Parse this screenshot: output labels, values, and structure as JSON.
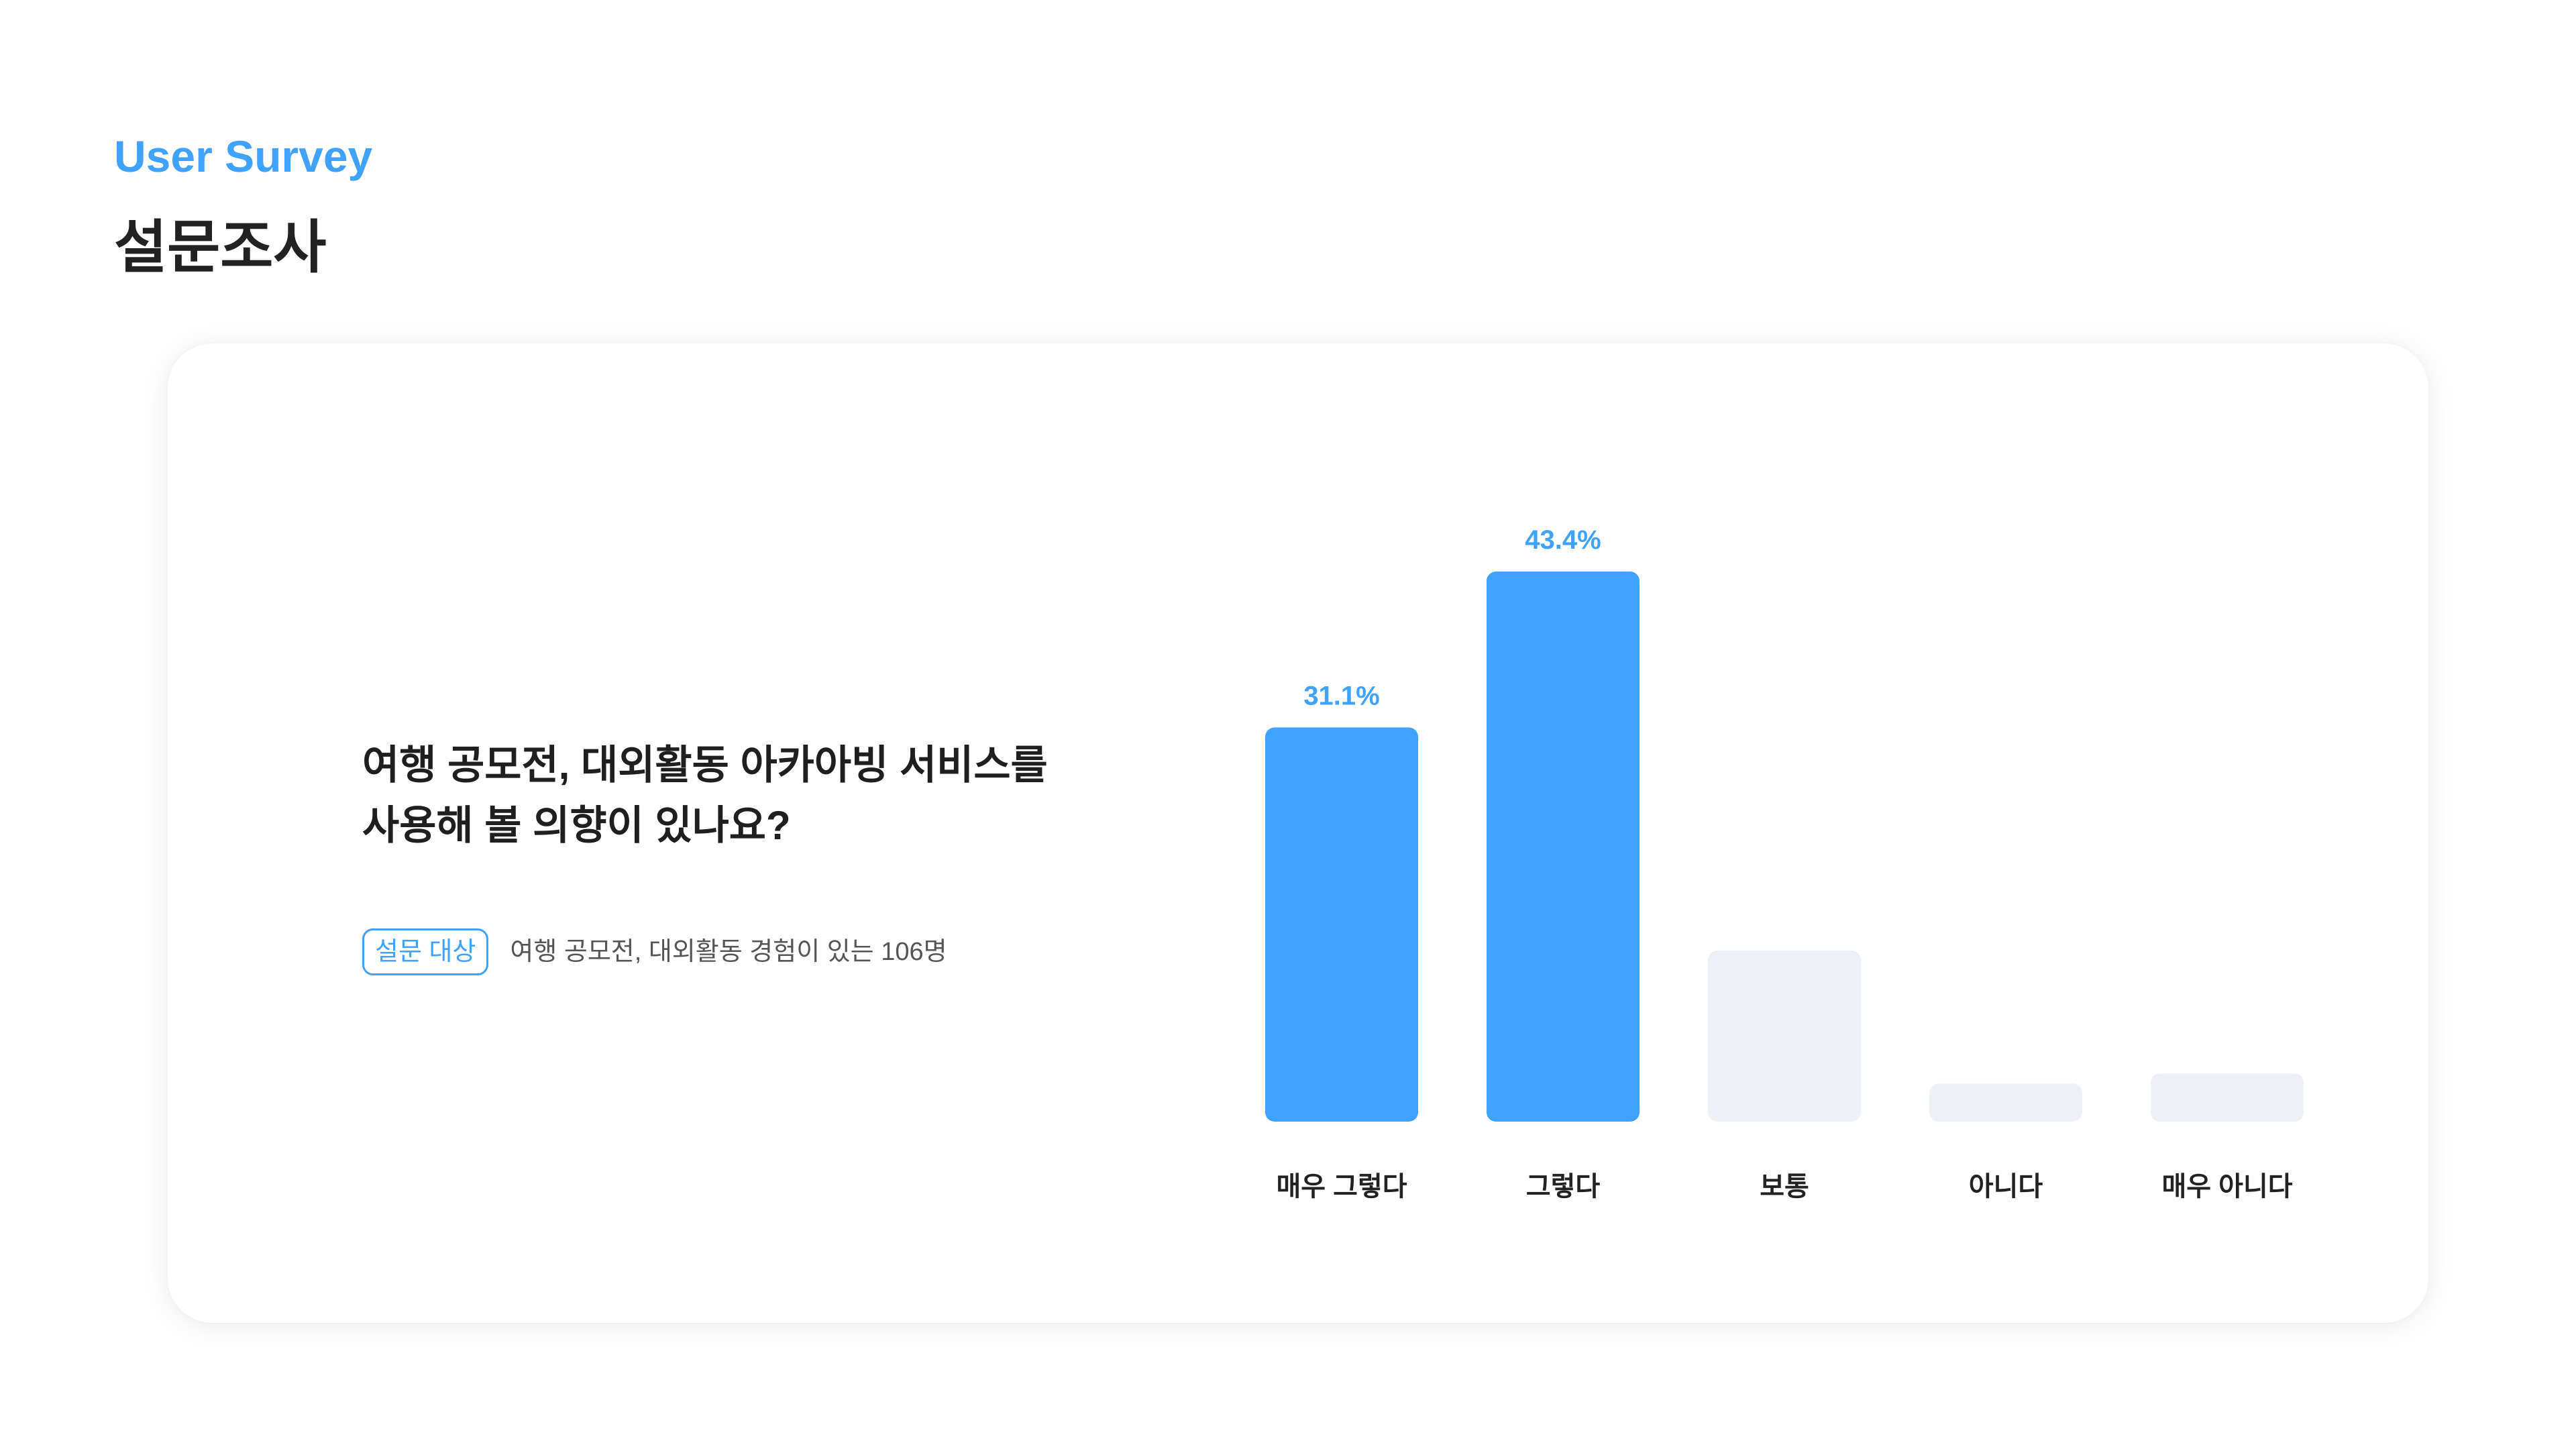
{
  "header": {
    "eyebrow": "User Survey",
    "title": "설문조사"
  },
  "question": {
    "line1": "여행 공모전, 대외활동 아카아빙 서비스를",
    "line2": "사용해 볼 의향이 있나요?"
  },
  "target": {
    "badge": "설문 대상",
    "text": "여행 공모전, 대외활동 경험이 있는 106명"
  },
  "colors": {
    "accent": "#3fa2ff",
    "muted_bar": "#edf0f6",
    "label": "#222222"
  },
  "chart_data": {
    "type": "bar",
    "categories": [
      "매우 그렇다",
      "그렇다",
      "보통",
      "아니다",
      "매우 아니다"
    ],
    "values": [
      31.1,
      43.4,
      13.5,
      3.0,
      3.8
    ],
    "value_labels": [
      "31.1%",
      "43.4%",
      "",
      "",
      ""
    ],
    "highlighted": [
      true,
      true,
      false,
      false,
      false
    ],
    "ylim": [
      0,
      43.4
    ],
    "grid": false,
    "legend": "none"
  }
}
